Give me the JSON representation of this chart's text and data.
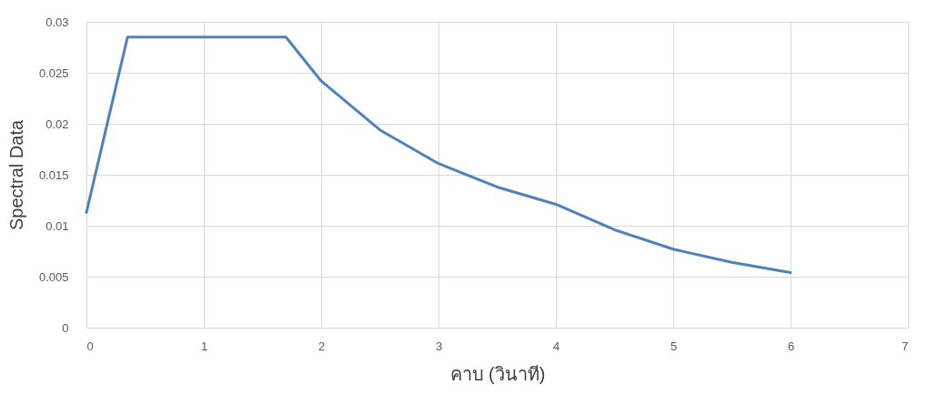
{
  "chart_data": {
    "type": "line",
    "xlabel": "คาบ (วินาที)",
    "ylabel": "Spectral Data",
    "x": [
      0,
      0.35,
      1.7,
      2,
      2.5,
      3,
      3.5,
      4,
      4.5,
      5,
      5.5,
      6
    ],
    "series": [
      {
        "color": "#4f81bd",
        "values": [
          0.0113,
          0.0285,
          0.0285,
          0.0242,
          0.0194,
          0.0161,
          0.0138,
          0.0121,
          0.0096,
          0.0077,
          0.0064,
          0.0054
        ]
      }
    ],
    "xlim": [
      0,
      7
    ],
    "xticks": [
      0,
      1,
      2,
      3,
      4,
      5,
      6,
      7
    ],
    "ylim": [
      0,
      0.03
    ],
    "yticks": [
      0,
      0.005,
      0.01,
      0.015,
      0.02,
      0.025,
      0.03
    ],
    "grid": true,
    "marker": "none",
    "line_style": "solid"
  }
}
